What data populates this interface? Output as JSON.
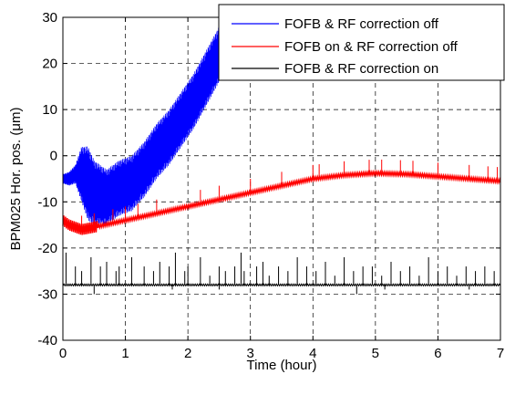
{
  "chart_data": {
    "type": "line",
    "title": "",
    "xlabel": "Time (hour)",
    "ylabel": "BPM025 Hor. pos. (μm)",
    "xlim": [
      0,
      7
    ],
    "ylim": [
      -40,
      30
    ],
    "x_ticks": [
      0,
      1,
      2,
      3,
      4,
      5,
      6,
      7
    ],
    "y_ticks": [
      -40,
      -30,
      -20,
      -10,
      0,
      10,
      20,
      30
    ],
    "grid": true,
    "grid_style": "dashed",
    "legend_position": "top-right",
    "series": [
      {
        "name": "FOFB & RF correction off",
        "color": "#0000ff",
        "x": [
          0,
          0.1,
          0.2,
          0.3,
          0.4,
          0.5,
          0.7,
          0.9,
          1.1,
          1.3,
          1.5,
          1.7,
          1.9,
          2.1,
          2.3,
          2.5
        ],
        "y": [
          -5,
          -5,
          -4,
          -4,
          -6,
          -8,
          -9,
          -7,
          -6,
          -3,
          1,
          4,
          8,
          12,
          17,
          22
        ],
        "band": [
          1,
          1.5,
          2,
          6,
          8,
          7,
          6,
          6,
          6,
          6,
          6,
          6,
          6,
          6,
          6,
          6
        ]
      },
      {
        "name": "FOFB on & RF correction off",
        "color": "#ff0000",
        "x": [
          0,
          0.1,
          0.3,
          0.5,
          1,
          1.5,
          2,
          2.5,
          3,
          3.5,
          4,
          4.5,
          5,
          5.5,
          6,
          6.5,
          7
        ],
        "y": [
          -14,
          -15,
          -16,
          -15.5,
          -14,
          -12.5,
          -11,
          -9.5,
          -8,
          -6.5,
          -5,
          -4.2,
          -3.8,
          -4,
          -4.5,
          -5,
          -5.5
        ],
        "spikes_x": [
          0.3,
          0.5,
          0.8,
          1.0,
          1.2,
          1.5,
          2.2,
          2.5,
          3.0,
          3.5,
          4.0,
          4.1,
          4.5,
          4.9,
          5.1,
          5.4,
          5.6,
          6.0,
          6.5,
          6.8,
          6.95
        ],
        "spike_height": 3
      },
      {
        "name": "FOFB & RF correction on",
        "color": "#000000",
        "x": [
          0,
          7
        ],
        "y": [
          -28,
          -28
        ],
        "spikes_x": [
          0.05,
          0.2,
          0.3,
          0.45,
          0.6,
          0.7,
          0.85,
          0.9,
          1.1,
          1.3,
          1.45,
          1.55,
          1.7,
          1.8,
          1.95,
          2.0,
          2.2,
          2.35,
          2.5,
          2.6,
          2.75,
          2.85,
          2.9,
          3.1,
          3.2,
          3.3,
          3.45,
          3.6,
          3.75,
          3.9,
          4.05,
          4.2,
          4.35,
          4.5,
          4.65,
          4.8,
          4.95,
          5.1,
          5.25,
          5.4,
          5.55,
          5.7,
          5.85,
          6.0,
          6.15,
          6.3,
          6.45,
          6.6,
          6.75,
          6.9
        ],
        "spike_tops": [
          -21,
          -24,
          -25,
          -22,
          -24,
          -23,
          -25,
          -24,
          -22,
          -24,
          -25,
          -23,
          -24,
          -21,
          -25,
          -24,
          -22,
          -26,
          -24,
          -25,
          -24,
          -21,
          -25,
          -24,
          -23,
          -26,
          -24,
          -25,
          -22,
          -24,
          -25,
          -23,
          -26,
          -22,
          -25,
          -24,
          -24,
          -26,
          -23,
          -25,
          -24,
          -26,
          -22,
          -25,
          -24,
          -26,
          -24,
          -25,
          -24,
          -25
        ],
        "dip_x": [
          0.5,
          1.75,
          2.5,
          4.7,
          5.15,
          6.5
        ],
        "dip_y": [
          -30,
          -29,
          -29,
          -30,
          -29,
          -29
        ]
      }
    ]
  }
}
